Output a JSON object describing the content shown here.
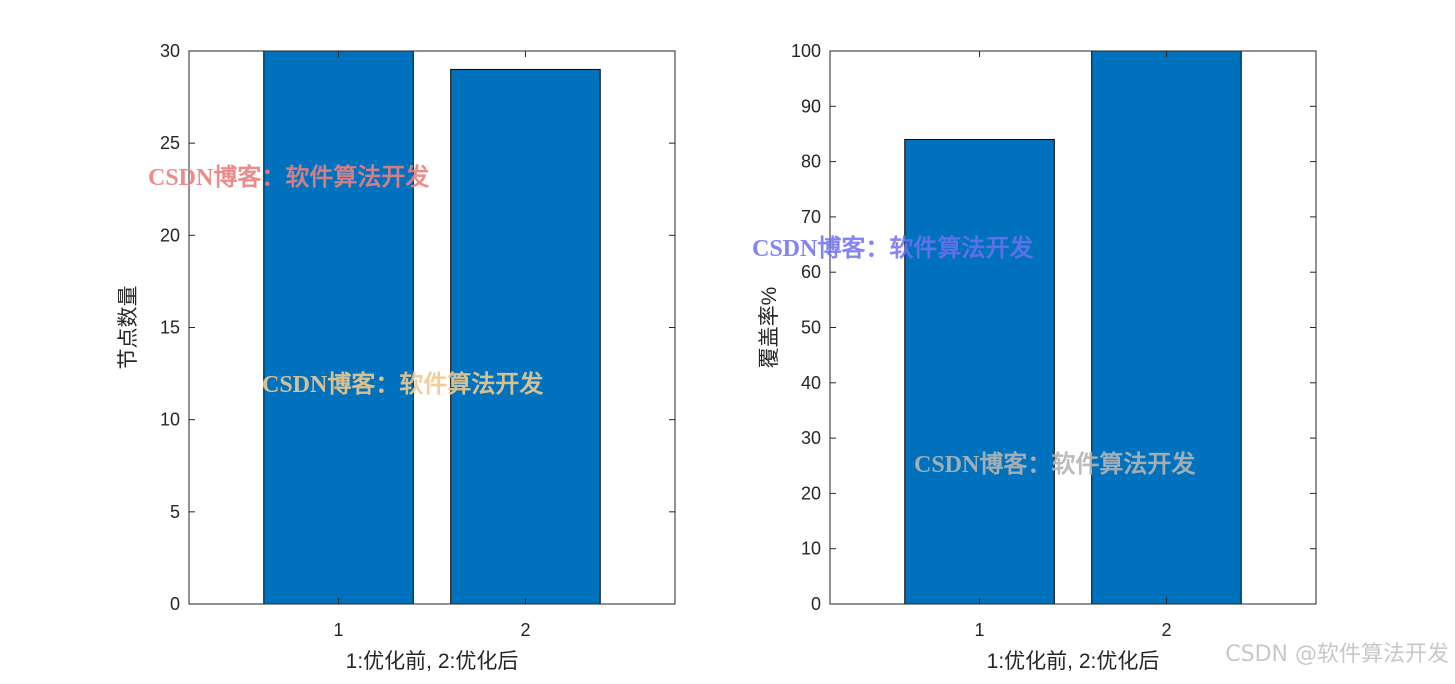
{
  "colors": {
    "bar": "#0072BD",
    "axis": "#262626",
    "background": "#ffffff"
  },
  "chart_data": [
    {
      "type": "bar",
      "categories": [
        "1",
        "2"
      ],
      "values": [
        30,
        29
      ],
      "xlabel": "1:优化前, 2:优化后",
      "ylabel": "节点数量",
      "ylim": [
        0,
        30
      ],
      "yticks": [
        0,
        5,
        10,
        15,
        20,
        25,
        30
      ],
      "xlim": [
        0.2,
        2.8
      ],
      "grid": false
    },
    {
      "type": "bar",
      "categories": [
        "1",
        "2"
      ],
      "values": [
        84,
        100
      ],
      "xlabel": "1:优化前, 2:优化后",
      "ylabel": "覆盖率%",
      "ylim": [
        0,
        100
      ],
      "yticks": [
        0,
        10,
        20,
        30,
        40,
        50,
        60,
        70,
        80,
        90,
        100
      ],
      "xlim": [
        0.2,
        2.8
      ],
      "grid": false
    }
  ],
  "watermarks": {
    "overlay_text": "CSDN博客：软件算法开发",
    "overlay_colors": [
      "#e88080",
      "#f0c98e",
      "#6f6ff0",
      "#b4b4b4"
    ],
    "corner_text": "CSDN @软件算法开发"
  }
}
